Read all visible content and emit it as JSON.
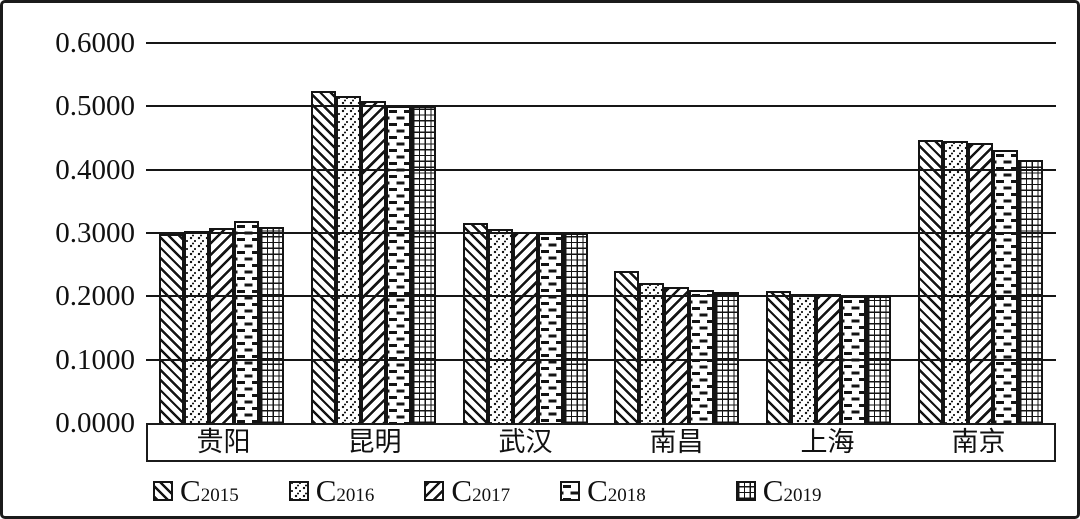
{
  "colors": {
    "foreground": "#141414",
    "background": "#ffffff",
    "frame_border": "#1b1b1b"
  },
  "chart_data": {
    "type": "bar",
    "title": "",
    "xlabel": "",
    "ylabel": "",
    "categories": [
      "贵阳",
      "昆明",
      "武汉",
      "南昌",
      "上海",
      "南京"
    ],
    "series": [
      {
        "name": "C2015",
        "label_base": "C",
        "label_sub": "2015",
        "pattern": "diagonal-backslash-hatch",
        "values": [
          0.298,
          0.525,
          0.316,
          0.24,
          0.208,
          0.447
        ]
      },
      {
        "name": "C2016",
        "label_base": "C",
        "label_sub": "2016",
        "pattern": "dot-speckle",
        "values": [
          0.303,
          0.517,
          0.306,
          0.221,
          0.204,
          0.445
        ]
      },
      {
        "name": "C2017",
        "label_base": "C",
        "label_sub": "2017",
        "pattern": "diagonal-slash-hatch",
        "values": [
          0.308,
          0.509,
          0.301,
          0.215,
          0.203,
          0.442
        ]
      },
      {
        "name": "C2018",
        "label_base": "C",
        "label_sub": "2018",
        "pattern": "horizontal-dash-brick",
        "values": [
          0.319,
          0.501,
          0.3,
          0.21,
          0.2,
          0.431
        ]
      },
      {
        "name": "C2019",
        "label_base": "C",
        "label_sub": "2019",
        "pattern": "grid-crosshatch",
        "values": [
          0.31,
          0.5,
          0.3,
          0.207,
          0.2,
          0.415
        ]
      }
    ],
    "ylim": [
      0.0,
      0.6
    ],
    "ytick_step": 0.1,
    "yticks": [
      "0.6000",
      "0.5000",
      "0.4000",
      "0.3000",
      "0.2000",
      "0.1000",
      "0.0000"
    ],
    "grid": "horizontal gridlines at every 0.1, drawn over the bars",
    "legend_position": "bottom-left, horizontal row",
    "bar_fill": "white with black hatch patterns, black outline"
  }
}
